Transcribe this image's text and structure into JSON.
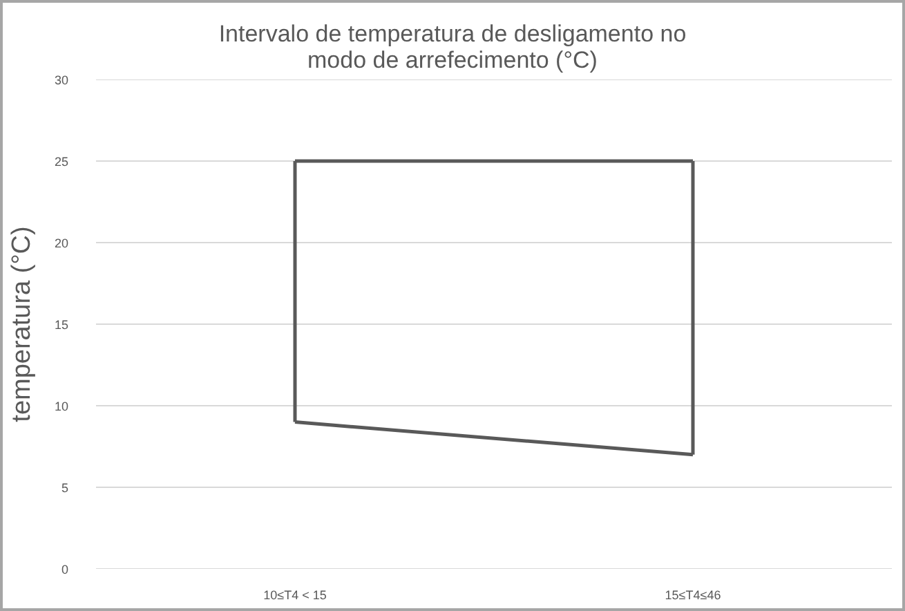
{
  "chart_data": {
    "type": "line",
    "title": "Intervalo de temperatura de desligamento no modo de arrefecimento (°C)",
    "ylabel": "temperatura (°C)",
    "categories": [
      "10≤T4 < 15",
      "15≤T4≤46"
    ],
    "series": [
      {
        "color": "#595959",
        "values": [
          25,
          25
        ]
      },
      {
        "color": "#595959",
        "values": [
          9,
          7
        ],
        "errors": [
          [
            9,
            25
          ],
          [
            7,
            25
          ]
        ]
      }
    ],
    "ylim": [
      0,
      30
    ],
    "yticks": [
      0,
      5,
      10,
      15,
      20,
      25,
      30
    ],
    "grid": "y",
    "line_style": "solid"
  }
}
